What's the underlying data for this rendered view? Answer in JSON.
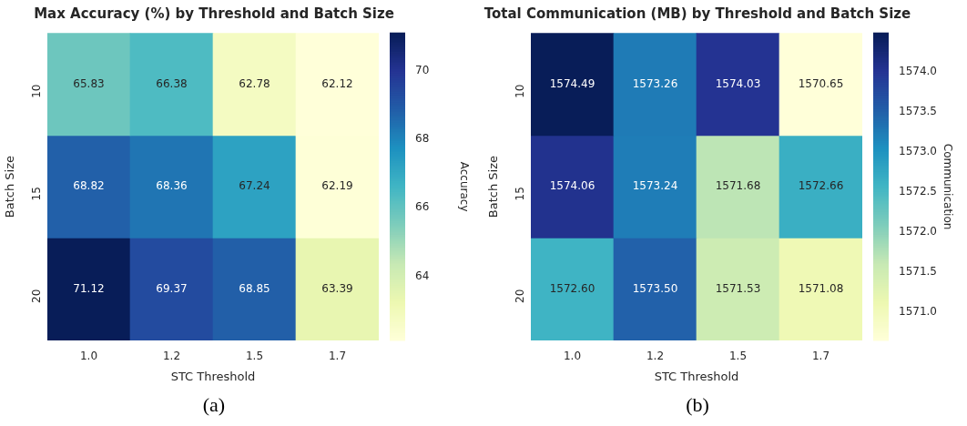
{
  "chart_data": [
    {
      "type": "heatmap",
      "title": "Max Accuracy (%) by Threshold and Batch Size",
      "xlabel": "STC Threshold",
      "ylabel": "Batch Size",
      "clabel": "Accuracy",
      "categories": [
        "1.0",
        "1.2",
        "1.5",
        "1.7"
      ],
      "y_categories": [
        "10",
        "15",
        "20"
      ],
      "cells": [
        [
          65.83,
          66.38,
          62.78,
          62.12
        ],
        [
          68.82,
          68.36,
          67.24,
          62.19
        ],
        [
          71.12,
          69.37,
          68.85,
          63.39
        ]
      ],
      "data_labels": true,
      "clim": [
        62.12,
        71.12
      ],
      "cticks": [
        64,
        66,
        68,
        70
      ],
      "annotations": [
        "(a)"
      ]
    },
    {
      "type": "heatmap",
      "title": "Total Communication (MB) by Threshold and Batch Size",
      "xlabel": "STC Threshold",
      "ylabel": "Batch Size",
      "clabel": "Communication",
      "categories": [
        "1.0",
        "1.2",
        "1.5",
        "1.7"
      ],
      "y_categories": [
        "10",
        "15",
        "20"
      ],
      "cells": [
        [
          1574.49,
          1573.26,
          1574.03,
          1570.65
        ],
        [
          1574.06,
          1573.24,
          1571.68,
          1572.66
        ],
        [
          1572.6,
          1573.5,
          1571.53,
          1571.08
        ]
      ],
      "cell_labels": [
        [
          "1574.49",
          "1573.26",
          "1574.03",
          "1570.65"
        ],
        [
          "1574.06",
          "1573.24",
          "1571.68",
          "1572.66"
        ],
        [
          "1572.60",
          "1573.50",
          "1571.53",
          "1571.08"
        ]
      ],
      "clim": [
        1570.65,
        1574.49
      ],
      "cticks": [
        {
          "value": 1571,
          "label": "1571.0"
        },
        {
          "value": 1571.5,
          "label": "1571.5"
        },
        {
          "value": 1572,
          "label": "1572.0"
        },
        {
          "value": 1572.5,
          "label": "1572.5"
        },
        {
          "value": 1573,
          "label": "1573.0"
        },
        {
          "value": 1573.5,
          "label": "1573.5"
        },
        {
          "value": 1574,
          "label": "1574.0"
        }
      ],
      "annotations": [
        "(b)"
      ]
    }
  ]
}
